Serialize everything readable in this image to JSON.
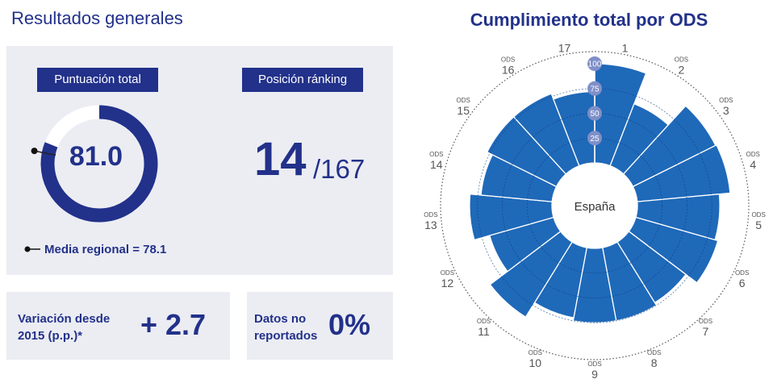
{
  "left": {
    "title": "Resultados generales",
    "score": {
      "label": "Puntuación total",
      "value": "81.0",
      "value_num": 81.0,
      "regional_label": "Media regional = 78.1",
      "regional_num": 78.1
    },
    "ranking": {
      "label": "Posición ránking",
      "position": "14",
      "total": "/167"
    },
    "variation": {
      "label": "Variación desde 2015 (p.p.)*",
      "value": "+ 2.7"
    },
    "missing": {
      "label": "Datos no reportados",
      "value": "0%"
    }
  },
  "colors": {
    "brand": "#22318a",
    "bar": "#1f69b9",
    "panel": "#ecedf3",
    "track": "#ffffff"
  },
  "chart_data": {
    "type": "radial_bar",
    "title": "Cumplimiento total por ODS",
    "center_label": "España",
    "prefix": "ODS",
    "categories": [
      "1",
      "2",
      "3",
      "4",
      "5",
      "6",
      "7",
      "8",
      "9",
      "10",
      "11",
      "12",
      "13",
      "14",
      "15",
      "16",
      "17"
    ],
    "values": [
      100,
      67,
      93,
      94,
      83,
      86,
      72,
      75,
      75,
      72,
      89,
      67,
      83,
      72,
      78,
      78,
      72
    ],
    "rlim": [
      0,
      100
    ],
    "radial_ticks": [
      "25",
      "50",
      "75",
      "100"
    ]
  }
}
